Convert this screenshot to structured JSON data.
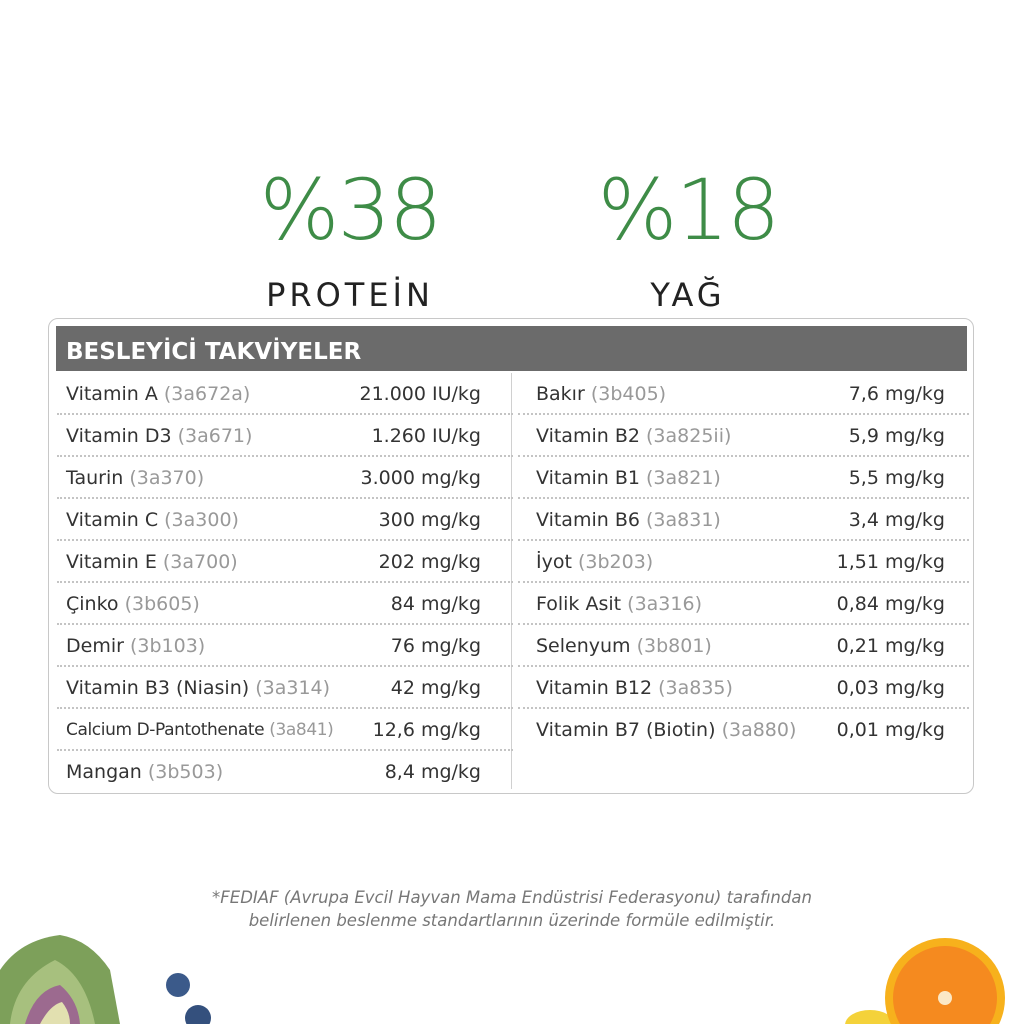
{
  "stats": [
    {
      "value": "%38",
      "label": "PROTEİN"
    },
    {
      "value": "%18",
      "label": "YAĞ"
    }
  ],
  "panel": {
    "title": "BESLEYİCİ TAKVİYELER",
    "left": [
      {
        "name": "Vitamin A",
        "code": "(3a672a)",
        "value": "21.000 IU/kg"
      },
      {
        "name": "Vitamin D3",
        "code": "(3a671)",
        "value": "1.260 IU/kg"
      },
      {
        "name": "Taurin",
        "code": "(3a370)",
        "value": "3.000 mg/kg"
      },
      {
        "name": "Vitamin C",
        "code": "(3a300)",
        "value": "300 mg/kg"
      },
      {
        "name": "Vitamin E",
        "code": "(3a700)",
        "value": "202 mg/kg"
      },
      {
        "name": "Çinko",
        "code": "(3b605)",
        "value": "84 mg/kg"
      },
      {
        "name": "Demir",
        "code": "(3b103)",
        "value": "76 mg/kg"
      },
      {
        "name": "Vitamin B3 (Niasin)",
        "code": "(3a314)",
        "value": "42 mg/kg"
      },
      {
        "name": "Calcium D-Pantothenate",
        "code": "(3a841)",
        "value": "12,6 mg/kg"
      },
      {
        "name": "Mangan",
        "code": "(3b503)",
        "value": "8,4 mg/kg"
      }
    ],
    "right": [
      {
        "name": "Bakır",
        "code": "(3b405)",
        "value": "7,6 mg/kg"
      },
      {
        "name": "Vitamin B2",
        "code": "(3a825ii)",
        "value": "5,9 mg/kg"
      },
      {
        "name": "Vitamin B1",
        "code": "(3a821)",
        "value": "5,5 mg/kg"
      },
      {
        "name": "Vitamin B6",
        "code": "(3a831)",
        "value": "3,4 mg/kg"
      },
      {
        "name": "İyot",
        "code": "(3b203)",
        "value": "1,51 mg/kg"
      },
      {
        "name": "Folik Asit",
        "code": "(3a316)",
        "value": "0,84 mg/kg"
      },
      {
        "name": "Selenyum",
        "code": "(3b801)",
        "value": "0,21 mg/kg"
      },
      {
        "name": "Vitamin B12",
        "code": "(3a835)",
        "value": "0,03 mg/kg"
      },
      {
        "name": "Vitamin B7 (Biotin)",
        "code": "(3a880)",
        "value": "0,01 mg/kg"
      }
    ]
  },
  "footnote": {
    "line1": "*FEDIAF (Avrupa Evcil Hayvan Mama Endüstrisi Federasyonu) tarafından",
    "line2": "belirlenen beslenme standartlarının üzerinde formüle edilmiştir."
  },
  "colors": {
    "accent": "#3e8c47",
    "header": "#6b6b6b"
  },
  "decorations": [
    "artichoke-image",
    "blueberry-image",
    "orange-image",
    "lemon-image"
  ]
}
